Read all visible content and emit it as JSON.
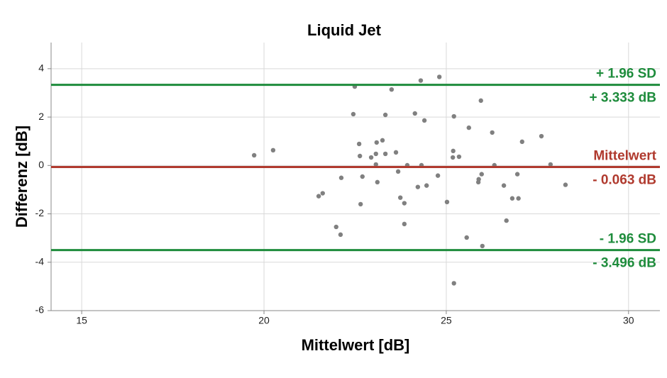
{
  "chart_data": {
    "type": "scatter",
    "title": "Liquid Jet",
    "x_label": "Mittelwert [dB]",
    "y_label": "Differenz [dB]",
    "xlim": [
      14.16,
      30.86
    ],
    "ylim": [
      -6,
      5.08
    ],
    "xticks": [
      15,
      20,
      25,
      30
    ],
    "yticks": [
      -6,
      -4,
      -2,
      0,
      2,
      4
    ],
    "grid": true,
    "series": [
      {
        "color": "#808080",
        "x": [
          19.73,
          20.25,
          21.5,
          21.61,
          21.98,
          22.1,
          22.12,
          22.45,
          22.49,
          22.61,
          22.63,
          22.65,
          22.7,
          22.94,
          23.07,
          23.07,
          23.09,
          23.11,
          23.25,
          23.33,
          23.33,
          23.5,
          23.62,
          23.68,
          23.74,
          23.85,
          23.85,
          23.93,
          24.14,
          24.22,
          24.3,
          24.32,
          24.4,
          24.46,
          24.77,
          24.81,
          25.02,
          25.18,
          25.19,
          25.21,
          25.21,
          25.35,
          25.56,
          25.62,
          25.88,
          25.89,
          25.95,
          25.97,
          25.99,
          26.26,
          26.32,
          26.58,
          26.65,
          26.81,
          26.95,
          26.98,
          27.08,
          27.61,
          27.86,
          28.27
        ],
        "values": [
          0.42,
          0.63,
          -1.27,
          -1.15,
          -2.54,
          -2.86,
          -0.51,
          2.12,
          3.26,
          0.89,
          0.39,
          -1.6,
          -0.46,
          0.33,
          0.48,
          0.04,
          0.95,
          -0.69,
          1.04,
          0.48,
          2.09,
          3.14,
          0.54,
          -0.25,
          -1.33,
          -1.56,
          -2.42,
          0.01,
          2.15,
          -0.89,
          3.51,
          0.01,
          1.86,
          -0.83,
          -0.42,
          3.66,
          -1.51,
          0.33,
          0.6,
          2.03,
          -4.87,
          0.36,
          -2.98,
          1.56,
          -0.69,
          -0.57,
          2.68,
          -0.36,
          -3.33,
          1.36,
          0.01,
          -0.83,
          -2.28,
          -1.36,
          -0.36,
          -1.36,
          0.98,
          1.21,
          0.04,
          -0.8
        ]
      }
    ],
    "reference_lines": [
      {
        "value": 3.333,
        "name": "+ 1.96 SD",
        "label": "+ 3.333 dB",
        "color": "#1e8c3c"
      },
      {
        "value": -0.063,
        "name": "Mittelwert",
        "label": "- 0.063 dB",
        "color": "#b03a2e"
      },
      {
        "value": -3.496,
        "name": "- 1.96 SD",
        "label": "- 3.496 dB",
        "color": "#1e8c3c"
      }
    ]
  }
}
